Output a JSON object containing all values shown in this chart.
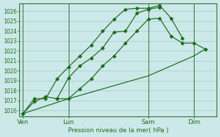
{
  "bg_color": "#cce8e8",
  "grid_color": "#99cccc",
  "line_color": "#1a6b1a",
  "xlabel": "Pression niveau de la mer( hPa )",
  "xtick_labels": [
    "Ven",
    "Lun",
    "Sam",
    "Dim"
  ],
  "xtick_positions": [
    0,
    4,
    11,
    15
  ],
  "vline_positions": [
    0,
    4,
    11,
    15
  ],
  "yticks": [
    1016,
    1017,
    1018,
    1019,
    1020,
    1021,
    1022,
    1023,
    1024,
    1025,
    1026
  ],
  "ylim": [
    1015.4,
    1026.8
  ],
  "xlim": [
    -0.3,
    17
  ],
  "line1_x": [
    0,
    1,
    2,
    3,
    4,
    5,
    6,
    7,
    8,
    9,
    10,
    11,
    12
  ],
  "line1_y": [
    1015.7,
    1016.9,
    1017.4,
    1017.2,
    1019.3,
    1020.5,
    1021.3,
    1022.3,
    1023.9,
    1024.0,
    1025.8,
    1026.2,
    1026.4
  ],
  "line2_x": [
    0,
    1,
    2,
    3,
    4,
    5,
    6,
    7,
    8,
    9,
    10,
    11,
    12,
    13,
    14
  ],
  "line2_y": [
    1015.7,
    1017.2,
    1017.2,
    1019.2,
    1020.4,
    1021.5,
    1022.6,
    1024.0,
    1025.2,
    1026.2,
    1026.3,
    1026.3,
    1026.6,
    1025.3,
    1023.3
  ],
  "line3_x": [
    0,
    4,
    11,
    15,
    16
  ],
  "line3_y": [
    1015.7,
    1017.2,
    1019.5,
    1021.5,
    1022.2
  ],
  "line4_x": [
    3,
    4,
    5,
    6,
    7,
    8,
    9,
    10,
    11,
    12,
    13,
    14,
    15,
    16
  ],
  "line4_y": [
    1017.2,
    1017.2,
    1018.2,
    1019.2,
    1020.5,
    1021.5,
    1022.8,
    1024.0,
    1025.2,
    1025.3,
    1023.5,
    1022.8,
    1022.8,
    1022.2
  ]
}
